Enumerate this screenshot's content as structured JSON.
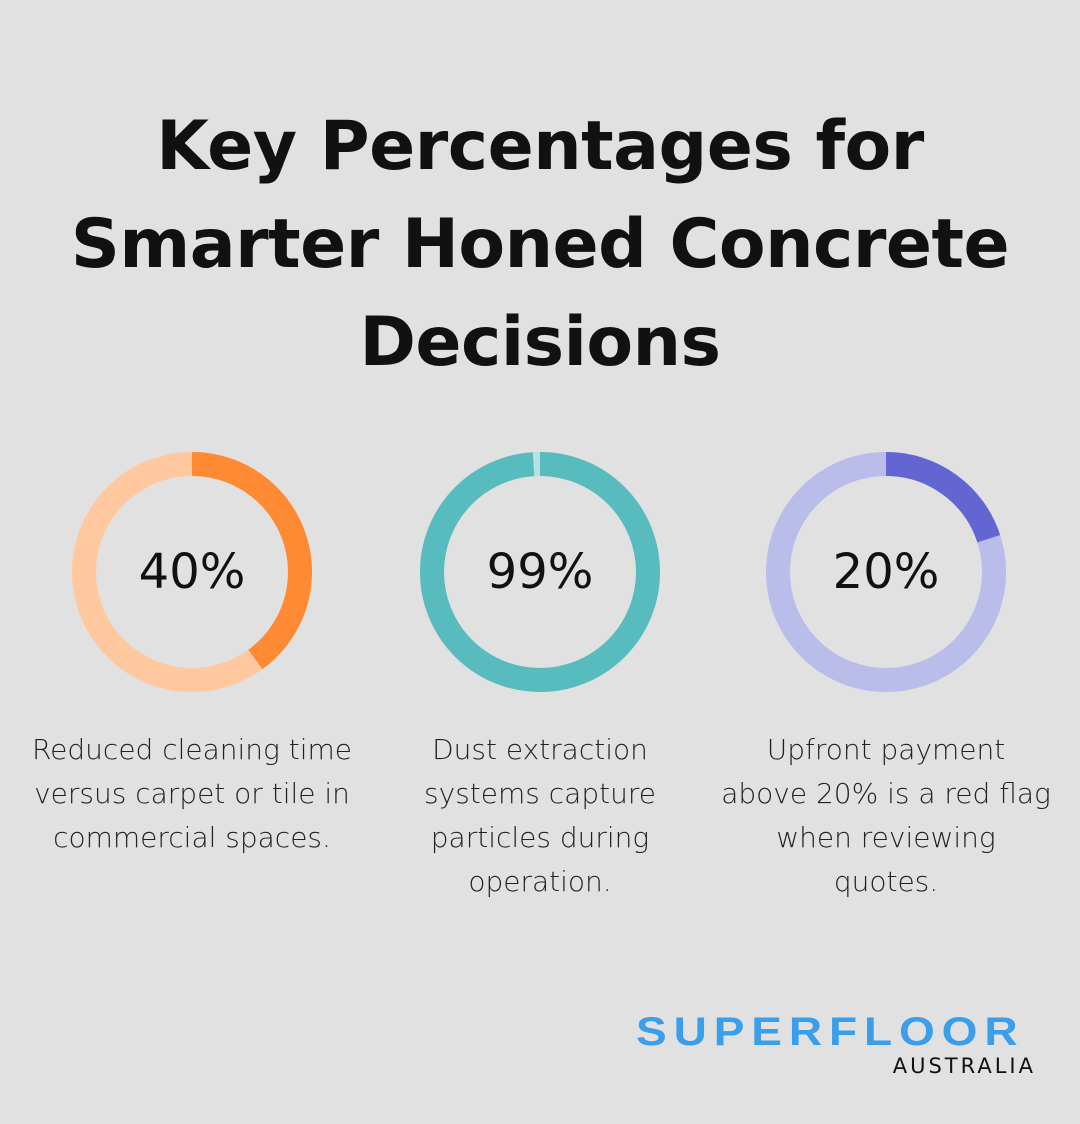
{
  "chart_data": {
    "type": "pie",
    "title": "Key Percentages for Smarter Honed Concrete Decisions",
    "items": [
      {
        "value": 40,
        "label": "40%",
        "description": "Reduced cleaning time versus carpet or tile in commercial spaces.",
        "color": "#fe8a34",
        "track": "#ffc89f"
      },
      {
        "value": 99,
        "label": "99%",
        "description": "Dust extraction systems capture particles during operation.",
        "color": "#58bcbe",
        "track": "#b5e2e3"
      },
      {
        "value": 20,
        "label": "20%",
        "description": "Upfront payment above 20% is a red flag when reviewing quotes.",
        "color": "#6366d2",
        "track": "#babdea"
      }
    ]
  },
  "logo": {
    "line1": "SUPERFLOOR",
    "line2": "AUSTRALIA"
  }
}
